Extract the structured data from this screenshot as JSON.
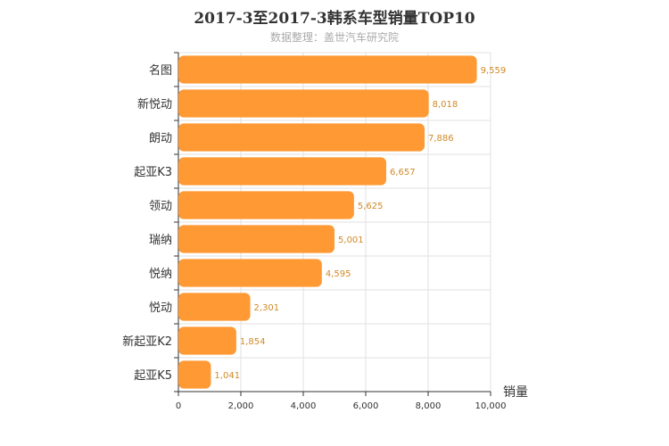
{
  "chart_data": {
    "type": "bar",
    "orientation": "horizontal",
    "title": "2017-3至2017-3韩系车型销量TOP10",
    "subtitle": "数据整理：盖世汽车研究院",
    "categories": [
      "名图",
      "新悦动",
      "朗动",
      "起亚K3",
      "领动",
      "瑞纳",
      "悦纳",
      "悦动",
      "新起亚K2",
      "起亚K5"
    ],
    "values": [
      9559,
      8018,
      7886,
      6657,
      5625,
      5001,
      4595,
      2301,
      1854,
      1041
    ],
    "value_labels": [
      "9,559",
      "8,018",
      "7,886",
      "6,657",
      "5,625",
      "5,001",
      "4,595",
      "2,301",
      "1,854",
      "1,041"
    ],
    "xlabel": "销量",
    "xlim": [
      0,
      10000
    ],
    "xticks": [
      0,
      2000,
      4000,
      6000,
      8000,
      10000
    ],
    "xtick_labels": [
      "0",
      "2,000",
      "4,000",
      "6,000",
      "8,000",
      "10,000"
    ],
    "grid": true,
    "bar_color": "#ff9933",
    "label_color": "#d08a28"
  }
}
